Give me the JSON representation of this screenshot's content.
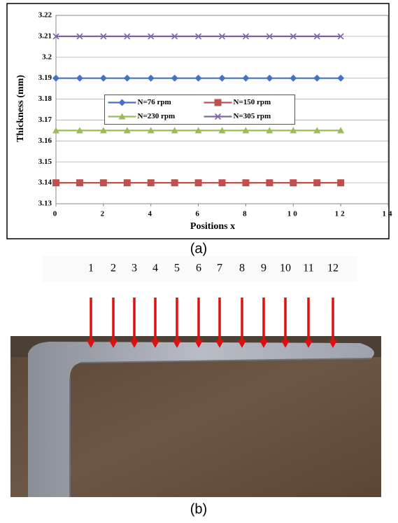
{
  "chart_data": {
    "type": "line",
    "x": [
      0,
      1,
      2,
      3,
      4,
      5,
      6,
      7,
      8,
      9,
      10,
      11,
      12
    ],
    "series": [
      {
        "name": "N=76 rpm",
        "color": "#4472c4",
        "marker": "diamond",
        "values": [
          3.19,
          3.19,
          3.19,
          3.19,
          3.19,
          3.19,
          3.19,
          3.19,
          3.19,
          3.19,
          3.19,
          3.19,
          3.19
        ]
      },
      {
        "name": "N=150 rpm",
        "color": "#c0504d",
        "marker": "square",
        "values": [
          3.14,
          3.14,
          3.14,
          3.14,
          3.14,
          3.14,
          3.14,
          3.14,
          3.14,
          3.14,
          3.14,
          3.14,
          3.14
        ]
      },
      {
        "name": "N=230 rpm",
        "color": "#9bbb59",
        "marker": "triangle",
        "values": [
          3.165,
          3.165,
          3.165,
          3.165,
          3.165,
          3.165,
          3.165,
          3.165,
          3.165,
          3.165,
          3.165,
          3.165,
          3.165
        ]
      },
      {
        "name": "N=305 rpm",
        "color": "#8064a2",
        "marker": "x",
        "values": [
          3.21,
          3.21,
          3.21,
          3.21,
          3.21,
          3.21,
          3.21,
          3.21,
          3.21,
          3.21,
          3.21,
          3.21,
          3.21
        ]
      }
    ],
    "xlabel": "Positions x",
    "ylabel": "Thickness (mm)",
    "xlim": [
      0,
      14
    ],
    "xticks": [
      0,
      2,
      4,
      6,
      8,
      10,
      12,
      14
    ],
    "ylim": [
      3.13,
      3.22
    ],
    "yticks": [
      3.13,
      3.14,
      3.15,
      3.16,
      3.17,
      3.18,
      3.19,
      3.2,
      3.21,
      3.22
    ],
    "grid": true,
    "legend": "center"
  },
  "captions": [
    "(a)",
    "(b)"
  ],
  "photo": {
    "position_labels": [
      1,
      2,
      3,
      4,
      5,
      6,
      7,
      8,
      9,
      10,
      11,
      12
    ]
  }
}
